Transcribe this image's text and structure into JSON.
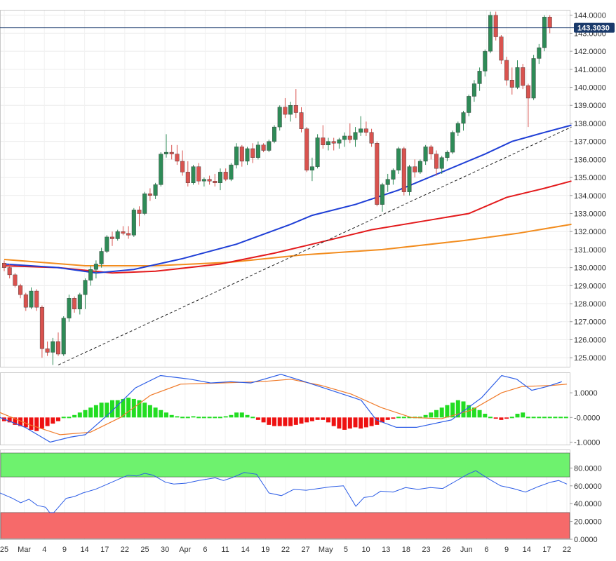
{
  "colors": {
    "up": "#2e8b57",
    "down": "#d9534f",
    "sma50": "#1f3fd6",
    "sma100": "#e31a1c",
    "sma200": "#f28c1e",
    "macd": "#2b5ce6",
    "signal": "#f07b2a",
    "hist_pos": "#22dd22",
    "hist_neg": "#ee1111",
    "rsi": "#2b5ce6",
    "overbought": "#6ef26e",
    "oversold": "#f66a6a",
    "price_line": "#1a3a6b"
  },
  "price_tag": "143.3030",
  "chart_data": [
    {
      "type": "candlestick",
      "title": "",
      "ylim": [
        124.5,
        144.3
      ],
      "yticks": [
        "144.0000",
        "143.0000",
        "142.0000",
        "141.0000",
        "140.0000",
        "139.0000",
        "138.0000",
        "137.0000",
        "136.0000",
        "135.0000",
        "134.0000",
        "133.0000",
        "132.0000",
        "131.0000",
        "130.0000",
        "129.0000",
        "128.0000",
        "127.0000",
        "126.0000",
        "125.0000"
      ],
      "x_labels": [
        "25",
        "Mar",
        "4",
        "9",
        "14",
        "17",
        "22",
        "25",
        "30",
        "Apr",
        "6",
        "11",
        "14",
        "19",
        "22",
        "27",
        "May",
        "5",
        "10",
        "13",
        "18",
        "23",
        "26",
        "Jun",
        "6",
        "9",
        "14",
        "17",
        "22"
      ],
      "current_price": 143.303,
      "candles": [
        [
          130.25,
          130.4,
          129.8,
          130.0
        ],
        [
          130.0,
          130.2,
          129.4,
          129.6
        ],
        [
          129.6,
          129.7,
          128.9,
          129.0
        ],
        [
          129.0,
          129.1,
          128.3,
          128.5
        ],
        [
          128.5,
          128.6,
          127.6,
          127.8
        ],
        [
          127.8,
          128.9,
          127.7,
          128.7
        ],
        [
          128.7,
          128.8,
          127.6,
          127.8
        ],
        [
          127.8,
          127.9,
          125.0,
          125.5
        ],
        [
          125.5,
          125.9,
          125.1,
          125.3
        ],
        [
          125.3,
          126.1,
          124.6,
          125.9
        ],
        [
          125.9,
          126.4,
          125.1,
          125.2
        ],
        [
          125.2,
          127.3,
          125.1,
          127.2
        ],
        [
          127.2,
          128.5,
          127.0,
          128.3
        ],
        [
          128.3,
          128.4,
          127.5,
          127.7
        ],
        [
          127.7,
          128.6,
          127.4,
          128.5
        ],
        [
          128.5,
          129.4,
          127.7,
          129.3
        ],
        [
          129.3,
          130.1,
          129.0,
          129.9
        ],
        [
          129.9,
          130.4,
          129.4,
          130.2
        ],
        [
          130.2,
          131.1,
          130.0,
          130.9
        ],
        [
          130.9,
          131.8,
          130.8,
          131.7
        ],
        [
          131.7,
          132.0,
          131.2,
          131.6
        ],
        [
          131.6,
          132.1,
          131.5,
          132.0
        ],
        [
          132.0,
          132.3,
          131.8,
          131.9
        ],
        [
          131.9,
          132.3,
          131.6,
          131.8
        ],
        [
          131.8,
          133.3,
          131.7,
          133.2
        ],
        [
          133.2,
          133.4,
          132.3,
          133.0
        ],
        [
          133.0,
          134.2,
          132.9,
          134.1
        ],
        [
          134.1,
          134.4,
          133.7,
          134.0
        ],
        [
          134.0,
          134.7,
          133.8,
          134.6
        ],
        [
          134.6,
          136.4,
          134.5,
          136.3
        ],
        [
          136.3,
          137.4,
          136.1,
          136.4
        ],
        [
          136.4,
          136.8,
          136.0,
          136.3
        ],
        [
          136.3,
          136.8,
          135.7,
          135.9
        ],
        [
          135.9,
          136.5,
          135.1,
          135.3
        ],
        [
          135.3,
          135.9,
          134.5,
          134.7
        ],
        [
          134.7,
          135.7,
          134.6,
          135.6
        ],
        [
          135.6,
          135.8,
          134.6,
          134.8
        ],
        [
          134.8,
          135.0,
          134.5,
          134.9
        ],
        [
          134.9,
          135.1,
          134.6,
          134.8
        ],
        [
          134.8,
          135.2,
          134.5,
          134.7
        ],
        [
          134.7,
          135.5,
          134.3,
          135.3
        ],
        [
          135.3,
          135.5,
          134.8,
          134.9
        ],
        [
          134.9,
          135.8,
          134.8,
          135.7
        ],
        [
          135.7,
          136.9,
          135.5,
          136.7
        ],
        [
          136.7,
          136.8,
          135.6,
          135.9
        ],
        [
          135.9,
          136.7,
          135.7,
          136.6
        ],
        [
          136.6,
          136.9,
          135.8,
          136.1
        ],
        [
          136.1,
          137.0,
          136.0,
          136.8
        ],
        [
          136.8,
          136.9,
          136.4,
          136.5
        ],
        [
          136.5,
          137.1,
          136.4,
          137.0
        ],
        [
          137.0,
          137.9,
          136.9,
          137.8
        ],
        [
          137.8,
          139.0,
          137.6,
          138.9
        ],
        [
          138.9,
          139.4,
          138.3,
          138.5
        ],
        [
          138.5,
          139.2,
          138.1,
          139.0
        ],
        [
          139.0,
          139.9,
          138.3,
          138.6
        ],
        [
          138.6,
          138.9,
          137.5,
          137.7
        ],
        [
          137.7,
          137.8,
          135.3,
          135.4
        ],
        [
          135.4,
          136.1,
          134.8,
          135.6
        ],
        [
          135.6,
          137.4,
          135.5,
          137.2
        ],
        [
          137.2,
          137.9,
          136.6,
          136.8
        ],
        [
          136.8,
          137.2,
          136.5,
          137.0
        ],
        [
          137.0,
          137.2,
          136.5,
          136.9
        ],
        [
          136.9,
          137.2,
          136.6,
          137.1
        ],
        [
          137.1,
          137.5,
          136.7,
          137.3
        ],
        [
          137.3,
          138.0,
          136.9,
          137.1
        ],
        [
          137.1,
          137.8,
          136.7,
          137.5
        ],
        [
          137.5,
          138.4,
          137.3,
          137.7
        ],
        [
          137.7,
          138.1,
          137.3,
          137.5
        ],
        [
          137.5,
          137.7,
          136.7,
          136.9
        ],
        [
          136.9,
          137.0,
          133.4,
          133.5
        ],
        [
          133.5,
          134.7,
          133.1,
          134.6
        ],
        [
          134.6,
          135.2,
          134.2,
          134.9
        ],
        [
          134.9,
          135.5,
          134.6,
          135.4
        ],
        [
          135.4,
          136.7,
          135.2,
          136.6
        ],
        [
          136.6,
          136.7,
          134.0,
          134.2
        ],
        [
          134.2,
          135.7,
          134.0,
          135.6
        ],
        [
          135.6,
          136.0,
          135.0,
          135.3
        ],
        [
          135.3,
          136.0,
          135.2,
          135.9
        ],
        [
          135.9,
          136.8,
          135.7,
          136.7
        ],
        [
          136.7,
          136.8,
          136.0,
          136.3
        ],
        [
          136.3,
          136.5,
          135.1,
          135.5
        ],
        [
          135.5,
          136.2,
          135.2,
          136.1
        ],
        [
          136.1,
          136.5,
          135.9,
          136.4
        ],
        [
          136.4,
          137.6,
          136.3,
          137.5
        ],
        [
          137.5,
          138.1,
          137.3,
          138.0
        ],
        [
          138.0,
          138.7,
          137.6,
          138.6
        ],
        [
          138.6,
          139.6,
          138.4,
          139.5
        ],
        [
          139.5,
          140.4,
          139.2,
          140.2
        ],
        [
          140.2,
          141.1,
          139.8,
          140.9
        ],
        [
          140.9,
          142.1,
          140.6,
          142.0
        ],
        [
          142.0,
          144.2,
          141.9,
          144.0
        ],
        [
          144.0,
          144.2,
          142.6,
          142.8
        ],
        [
          142.8,
          142.9,
          141.3,
          141.5
        ],
        [
          141.5,
          141.7,
          140.1,
          140.4
        ],
        [
          140.4,
          141.1,
          139.6,
          140.0
        ],
        [
          140.0,
          141.5,
          139.9,
          141.1
        ],
        [
          141.1,
          141.3,
          139.9,
          140.1
        ],
        [
          140.1,
          140.2,
          137.8,
          139.4
        ],
        [
          139.4,
          141.8,
          139.3,
          141.6
        ],
        [
          141.6,
          142.4,
          141.3,
          142.2
        ],
        [
          142.2,
          144.0,
          142.0,
          143.9
        ],
        [
          143.9,
          144.0,
          143.0,
          143.3
        ]
      ],
      "sma50": [
        [
          0,
          130.2
        ],
        [
          10,
          130.0
        ],
        [
          17,
          129.7
        ],
        [
          24,
          129.9
        ],
        [
          33,
          130.5
        ],
        [
          43,
          131.3
        ],
        [
          53,
          132.4
        ],
        [
          57,
          132.9
        ],
        [
          65,
          133.5
        ],
        [
          73,
          134.3
        ],
        [
          81,
          135.3
        ],
        [
          89,
          136.3
        ],
        [
          94,
          137.0
        ],
        [
          100,
          137.5
        ],
        [
          105,
          137.9
        ]
      ],
      "sma100": [
        [
          0,
          130.1
        ],
        [
          10,
          130.0
        ],
        [
          20,
          129.7
        ],
        [
          28,
          129.8
        ],
        [
          40,
          130.2
        ],
        [
          50,
          130.8
        ],
        [
          57,
          131.3
        ],
        [
          68,
          132.1
        ],
        [
          78,
          132.6
        ],
        [
          86,
          133.0
        ],
        [
          93,
          133.9
        ],
        [
          100,
          134.4
        ],
        [
          105,
          134.8
        ]
      ],
      "sma200": [
        [
          0,
          130.45
        ],
        [
          15,
          130.1
        ],
        [
          28,
          130.1
        ],
        [
          42,
          130.3
        ],
        [
          55,
          130.7
        ],
        [
          70,
          131.0
        ],
        [
          85,
          131.5
        ],
        [
          95,
          131.9
        ],
        [
          105,
          132.4
        ]
      ],
      "trendline": [
        [
          10,
          124.6
        ],
        [
          105,
          137.8
        ]
      ]
    },
    {
      "type": "bar",
      "title": "",
      "ylim": [
        -1.1,
        1.8
      ],
      "yticks": [
        "1.0000",
        "-0.0000",
        "-1.0000"
      ],
      "macd": [
        [
          0,
          0.0
        ],
        [
          5,
          -0.4
        ],
        [
          10,
          -1.0
        ],
        [
          14,
          -0.8
        ],
        [
          17,
          -0.7
        ],
        [
          22,
          0.2
        ],
        [
          27,
          1.2
        ],
        [
          32,
          1.7
        ],
        [
          38,
          1.55
        ],
        [
          42,
          1.4
        ],
        [
          46,
          1.45
        ],
        [
          50,
          1.4
        ],
        [
          56,
          1.75
        ],
        [
          60,
          1.5
        ],
        [
          66,
          1.1
        ],
        [
          72,
          0.7
        ],
        [
          75,
          -0.1
        ],
        [
          79,
          -0.4
        ],
        [
          83,
          -0.4
        ],
        [
          90,
          -0.1
        ],
        [
          96,
          0.8
        ],
        [
          100,
          1.7
        ],
        [
          103,
          1.55
        ],
        [
          106,
          1.1
        ],
        [
          109,
          1.25
        ],
        [
          112,
          1.45
        ]
      ],
      "signal": [
        [
          0,
          0.2
        ],
        [
          6,
          -0.3
        ],
        [
          12,
          -0.7
        ],
        [
          18,
          -0.6
        ],
        [
          24,
          0.0
        ],
        [
          30,
          0.9
        ],
        [
          36,
          1.35
        ],
        [
          44,
          1.4
        ],
        [
          52,
          1.45
        ],
        [
          58,
          1.55
        ],
        [
          64,
          1.3
        ],
        [
          70,
          0.95
        ],
        [
          76,
          0.4
        ],
        [
          82,
          0.0
        ],
        [
          88,
          -0.05
        ],
        [
          94,
          0.3
        ],
        [
          100,
          1.0
        ],
        [
          104,
          1.25
        ],
        [
          110,
          1.3
        ],
        [
          113,
          1.35
        ]
      ],
      "histogram": [
        -0.15,
        -0.2,
        -0.3,
        -0.35,
        -0.4,
        -0.5,
        -0.55,
        -0.45,
        -0.35,
        -0.25,
        -0.15,
        0.0,
        0.0,
        0.1,
        0.2,
        0.3,
        0.4,
        0.5,
        0.6,
        0.6,
        0.7,
        0.7,
        0.75,
        0.8,
        0.75,
        0.7,
        0.6,
        0.5,
        0.4,
        0.3,
        0.2,
        0.1,
        0.05,
        0.0,
        0.0,
        0.05,
        0.0,
        0.0,
        0.0,
        0.0,
        0.0,
        0.05,
        0.1,
        0.2,
        0.2,
        0.1,
        0.0,
        -0.1,
        -0.2,
        -0.3,
        -0.35,
        -0.35,
        -0.35,
        -0.35,
        -0.3,
        -0.25,
        -0.2,
        -0.15,
        -0.1,
        -0.1,
        -0.2,
        -0.35,
        -0.45,
        -0.5,
        -0.45,
        -0.4,
        -0.45,
        -0.4,
        -0.35,
        -0.3,
        -0.2,
        -0.1,
        -0.05,
        0.0,
        0.0,
        0.0,
        0.0,
        0.0,
        0.1,
        0.2,
        0.3,
        0.4,
        0.5,
        0.6,
        0.7,
        0.65,
        0.5,
        0.4,
        0.3,
        0.15,
        0.0,
        -0.05,
        -0.1,
        -0.05,
        0.0,
        0.15,
        0.2,
        0.0,
        0.0,
        0.0,
        0.0,
        0.0,
        0.0,
        0.0,
        0.0
      ]
    },
    {
      "type": "line",
      "title": "",
      "ylim": [
        0,
        100
      ],
      "yticks": [
        "80.0000",
        "60.0000",
        "40.0000",
        "20.0000",
        "0.0000"
      ],
      "overbought_band": [
        70,
        100
      ],
      "oversold_band": [
        0,
        30
      ],
      "rsi": [
        [
          0,
          52
        ],
        [
          3,
          46
        ],
        [
          5,
          41
        ],
        [
          7,
          45
        ],
        [
          9,
          38
        ],
        [
          11,
          36
        ],
        [
          12,
          30
        ],
        [
          13,
          30
        ],
        [
          16,
          46
        ],
        [
          18,
          48
        ],
        [
          20,
          52
        ],
        [
          23,
          56
        ],
        [
          26,
          62
        ],
        [
          29,
          68
        ],
        [
          31,
          72
        ],
        [
          33,
          71
        ],
        [
          35,
          74
        ],
        [
          37,
          72
        ],
        [
          40,
          64
        ],
        [
          42,
          62
        ],
        [
          45,
          63
        ],
        [
          48,
          66
        ],
        [
          52,
          69
        ],
        [
          54,
          66
        ],
        [
          56,
          69
        ],
        [
          59,
          75
        ],
        [
          62,
          73
        ],
        [
          65,
          52
        ],
        [
          68,
          49
        ],
        [
          71,
          56
        ],
        [
          74,
          55
        ],
        [
          77,
          57
        ],
        [
          80,
          59
        ],
        [
          83,
          60
        ],
        [
          86,
          37
        ],
        [
          88,
          47
        ],
        [
          90,
          48
        ],
        [
          92,
          54
        ],
        [
          95,
          53
        ],
        [
          98,
          58
        ],
        [
          101,
          56
        ],
        [
          104,
          58
        ],
        [
          107,
          57
        ],
        [
          110,
          65
        ],
        [
          113,
          73
        ],
        [
          115,
          77
        ],
        [
          118,
          68
        ],
        [
          121,
          60
        ],
        [
          124,
          57
        ],
        [
          127,
          53
        ],
        [
          130,
          59
        ],
        [
          133,
          64
        ],
        [
          135,
          66
        ],
        [
          137,
          62
        ]
      ]
    }
  ]
}
